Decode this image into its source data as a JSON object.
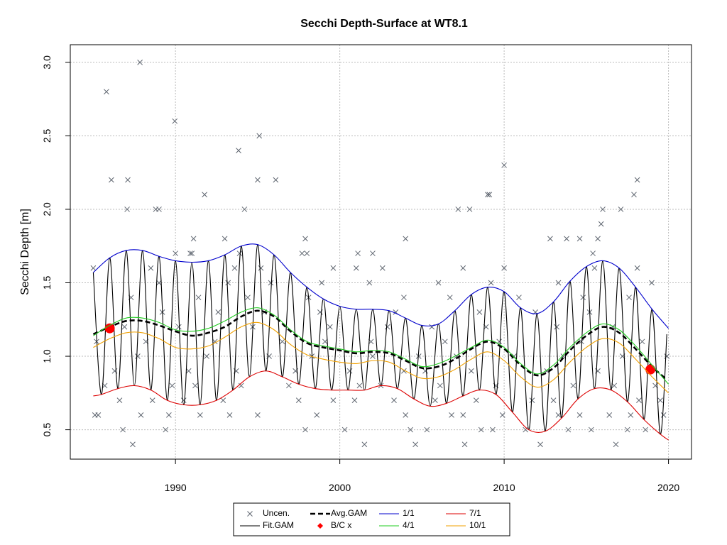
{
  "chart_data": {
    "type": "line",
    "title": "Secchi Depth-Surface at WT8.1",
    "y_label": "Secchi Depth [m]",
    "xlim": [
      1983.6,
      2021.4
    ],
    "ylim": [
      0.3,
      3.12
    ],
    "xticks": [
      1990,
      2000,
      2010,
      2020
    ],
    "yticks": [
      0.5,
      {
        "value": 1,
        "label": "1.0"
      },
      1.5,
      {
        "value": 2,
        "label": "2.0"
      },
      2.5,
      {
        "value": 3,
        "label": "3.0"
      }
    ],
    "grid": true,
    "legend": "bottom",
    "series": [
      {
        "name": "Uncen.",
        "type": "scatter",
        "marker": "x",
        "color": "#5f6670",
        "x": [
          1985.8,
          1987.84,
          1989.96,
          1993.84,
          1995.1,
          1995.0,
          1996.1,
          1986.1,
          1987.1,
          1994.2,
          1987.06,
          1988.8,
          1989.0,
          1991.77,
          2010.0,
          2009.0,
          2009.1,
          2007.2,
          2007.9,
          2016.0,
          2017.1,
          2018.1,
          2017.9,
          2015.9,
          1987.4,
          2001.5,
          2004.6,
          2007.6,
          2012.2,
          2016.8,
          1986.8,
          1989.4,
          1997.9,
          2000.3,
          2004.3,
          2005.3,
          2008.6,
          2009.3,
          2011.3,
          2013.9,
          2015.3,
          2017.5,
          2018.6,
          1985.1,
          1985.3,
          1987.9,
          1989.6,
          1991.5,
          1993.3,
          1995.0,
          1998.6,
          2004.0,
          2006.8,
          2007.5,
          2009.9,
          2013.3,
          2014.6,
          2016.4,
          2017.7,
          2019.7,
          1986.6,
          1988.6,
          1990.5,
          1992.9,
          1997.5,
          1999.6,
          2000.9,
          2003.3,
          2005.8,
          2008.3,
          2011.7,
          2013.0,
          2018.2,
          2019.5,
          1985.7,
          1989.8,
          1991.2,
          1994.0,
          1996.9,
          2001.2,
          2002.5,
          2006.1,
          2009.5,
          2014.2,
          2016.7,
          2019.2,
          1986.3,
          1990.8,
          1993.7,
          1997.3,
          2000.6,
          2003.9,
          2005.2,
          2008.0,
          2012.6,
          2015.7,
          2018.8,
          1987.7,
          1991.9,
          1995.7,
          1998.3,
          2002.0,
          2004.8,
          2007.1,
          2010.6,
          2013.6,
          2017.2,
          2019.9,
          1985.2,
          1988.2,
          1992.4,
          1996.5,
          1999.1,
          2001.9,
          2006.4,
          2009.7,
          2014.7,
          2018.4,
          1986.9,
          1990.2,
          1994.7,
          1999.4,
          2002.9,
          2005.6,
          2008.9,
          2013.2,
          2016.6,
          1989.2,
          1992.6,
          1995.4,
          1998.8,
          2003.4,
          2008.5,
          2011.9,
          2015.2,
          1987.3,
          1991.4,
          1994.4,
          1998.1,
          2003.9,
          2006.7,
          2010.9,
          2014.8,
          2017.6,
          1989.0,
          1993.2,
          1995.8,
          1998.9,
          2001.8,
          2006.0,
          2009.2,
          2013.3,
          2018.98,
          1985.0,
          1988.5,
          1993.6,
          1995.2,
          1999.6,
          2001.0,
          2002.6,
          2007.5,
          2010.0,
          2015.5,
          2018.1,
          1990.0,
          1990.9,
          1991.0,
          1993.9,
          1997.7,
          1998.0,
          2001.1,
          2002.0,
          2015.4,
          1991.1,
          1993.0,
          1997.9,
          2004.0,
          2012.8,
          2013.8,
          2014.6,
          2015.7
        ],
        "values": [
          2.8,
          3.0,
          2.6,
          2.4,
          2.5,
          2.2,
          2.2,
          2.2,
          2.2,
          2.0,
          2.0,
          2.0,
          2.0,
          2.1,
          2.3,
          2.1,
          2.1,
          2.0,
          2.0,
          2.0,
          2.0,
          2.2,
          2.1,
          1.9,
          0.4,
          0.4,
          0.4,
          0.4,
          0.4,
          0.4,
          0.5,
          0.5,
          0.5,
          0.5,
          0.5,
          0.5,
          0.5,
          0.5,
          0.5,
          0.5,
          0.5,
          0.5,
          0.5,
          0.6,
          0.6,
          0.6,
          0.6,
          0.6,
          0.6,
          0.6,
          0.6,
          0.6,
          0.6,
          0.6,
          0.6,
          0.6,
          0.6,
          0.6,
          0.6,
          0.6,
          0.7,
          0.7,
          0.7,
          0.7,
          0.7,
          0.7,
          0.7,
          0.7,
          0.7,
          0.7,
          0.7,
          0.7,
          0.7,
          0.7,
          0.8,
          0.8,
          0.8,
          0.8,
          0.8,
          0.8,
          0.8,
          0.8,
          0.8,
          0.8,
          0.8,
          0.8,
          0.9,
          0.9,
          0.9,
          0.9,
          0.9,
          0.9,
          0.9,
          0.9,
          0.9,
          0.9,
          0.9,
          1.0,
          1.0,
          1.0,
          1.0,
          1.0,
          1.0,
          1.0,
          1.0,
          1.0,
          1.0,
          1.0,
          1.1,
          1.1,
          1.1,
          1.1,
          1.1,
          1.1,
          1.1,
          1.1,
          1.1,
          1.1,
          1.2,
          1.2,
          1.2,
          1.2,
          1.2,
          1.2,
          1.2,
          1.2,
          1.2,
          1.3,
          1.3,
          1.3,
          1.3,
          1.3,
          1.3,
          1.3,
          1.3,
          1.4,
          1.4,
          1.4,
          1.4,
          1.4,
          1.4,
          1.4,
          1.4,
          1.4,
          1.5,
          1.5,
          1.5,
          1.5,
          1.5,
          1.5,
          1.5,
          1.5,
          1.5,
          1.6,
          1.6,
          1.6,
          1.6,
          1.6,
          1.6,
          1.6,
          1.6,
          1.6,
          1.6,
          1.6,
          1.7,
          1.7,
          1.7,
          1.7,
          1.7,
          1.7,
          1.7,
          1.7,
          1.7,
          1.8,
          1.8,
          1.8,
          1.8,
          1.8,
          1.8,
          1.8,
          1.8
        ]
      },
      {
        "name": "Fit.GAM",
        "type": "line",
        "color": "#000000",
        "x": [
          1985,
          1985.5,
          1986,
          1986.5,
          1987,
          1987.5,
          1988,
          1988.5,
          1989,
          1989.5,
          1990,
          1990.5,
          1991,
          1991.5,
          1992,
          1992.5,
          1993,
          1993.5,
          1994,
          1994.5,
          1995,
          1995.5,
          1996,
          1996.5,
          1997,
          1997.5,
          1998,
          1998.5,
          1999,
          1999.5,
          2000,
          2000.5,
          2001,
          2001.5,
          2002,
          2002.5,
          2003,
          2003.5,
          2004,
          2004.5,
          2005,
          2005.5,
          2006,
          2006.5,
          2007,
          2007.5,
          2008,
          2008.5,
          2009,
          2009.5,
          2010,
          2010.5,
          2011,
          2011.5,
          2012,
          2012.5,
          2013,
          2013.5,
          2014,
          2014.5,
          2015,
          2015.5,
          2016,
          2016.5,
          2017,
          2017.5,
          2018,
          2018.5,
          2019,
          2019.5,
          2019.9
        ],
        "values": [
          1.57,
          0.74,
          1.67,
          0.78,
          1.72,
          0.8,
          1.72,
          0.77,
          1.68,
          0.7,
          1.65,
          0.67,
          1.64,
          0.67,
          1.65,
          0.7,
          1.69,
          0.77,
          1.75,
          0.86,
          1.76,
          0.9,
          1.69,
          0.86,
          1.57,
          0.81,
          1.47,
          0.78,
          1.39,
          0.77,
          1.34,
          0.77,
          1.32,
          0.77,
          1.32,
          0.8,
          1.31,
          0.78,
          1.26,
          0.71,
          1.21,
          0.66,
          1.22,
          0.68,
          1.31,
          0.73,
          1.42,
          0.77,
          1.47,
          0.74,
          1.44,
          0.62,
          1.33,
          0.5,
          1.29,
          0.49,
          1.37,
          0.58,
          1.51,
          0.71,
          1.61,
          0.78,
          1.65,
          0.77,
          1.6,
          0.69,
          1.47,
          0.57,
          1.32,
          0.47,
          1.15
        ]
      },
      {
        "name": "Avg.GAM",
        "type": "line",
        "dash": true,
        "color": "#000000",
        "x": [
          1985,
          1986,
          1987,
          1988,
          1989,
          1990,
          1991,
          1992,
          1993,
          1994,
          1995,
          1996,
          1997,
          1998,
          1999,
          2000,
          2001,
          2002,
          2003,
          2004,
          2005,
          2006,
          2007,
          2008,
          2009,
          2010,
          2011,
          2012,
          2013,
          2014,
          2015,
          2016,
          2017,
          2018,
          2019,
          2019.9
        ],
        "values": [
          1.15,
          1.2,
          1.24,
          1.24,
          1.21,
          1.17,
          1.14,
          1.16,
          1.2,
          1.27,
          1.31,
          1.27,
          1.17,
          1.09,
          1.06,
          1.04,
          1.02,
          1.03,
          1.02,
          0.97,
          0.92,
          0.93,
          0.98,
          1.05,
          1.1,
          1.05,
          0.94,
          0.87,
          0.92,
          1.04,
          1.14,
          1.2,
          1.16,
          1.05,
          0.93,
          0.84
        ]
      },
      {
        "name": "B/C x",
        "type": "scatter",
        "marker": "circle",
        "color": "#ff0000",
        "x": [
          1986.0,
          2018.9
        ],
        "values": [
          1.19,
          0.91
        ]
      },
      {
        "name": "1/1",
        "type": "line",
        "color": "#0000cd",
        "x": [
          1985,
          1986,
          1987,
          1988,
          1989,
          1990,
          1991,
          1992,
          1993,
          1994,
          1995,
          1996,
          1997,
          1998,
          1999,
          2000,
          2001,
          2002,
          2003,
          2004,
          2005,
          2006,
          2007,
          2008,
          2009,
          2010,
          2011,
          2012,
          2013,
          2014,
          2015,
          2016,
          2017,
          2018,
          2019,
          2020
        ],
        "values": [
          1.57,
          1.67,
          1.72,
          1.72,
          1.68,
          1.65,
          1.64,
          1.65,
          1.69,
          1.75,
          1.76,
          1.69,
          1.57,
          1.47,
          1.39,
          1.34,
          1.32,
          1.32,
          1.31,
          1.26,
          1.21,
          1.22,
          1.31,
          1.42,
          1.47,
          1.44,
          1.33,
          1.29,
          1.37,
          1.51,
          1.61,
          1.65,
          1.6,
          1.47,
          1.32,
          1.19
        ]
      },
      {
        "name": "4/1",
        "type": "line",
        "color": "#22cc22",
        "x": [
          1985,
          1986,
          1987,
          1988,
          1989,
          1990,
          1991,
          1992,
          1993,
          1994,
          1995,
          1996,
          1997,
          1998,
          1999,
          2000,
          2001,
          2002,
          2003,
          2004,
          2005,
          2006,
          2007,
          2008,
          2009,
          2010,
          2011,
          2012,
          2013,
          2014,
          2015,
          2016,
          2017,
          2018,
          2019,
          2020
        ],
        "values": [
          1.14,
          1.21,
          1.26,
          1.26,
          1.23,
          1.18,
          1.17,
          1.19,
          1.24,
          1.3,
          1.33,
          1.28,
          1.18,
          1.1,
          1.07,
          1.05,
          1.03,
          1.04,
          1.03,
          0.98,
          0.93,
          0.95,
          1.0,
          1.06,
          1.11,
          1.06,
          0.95,
          0.88,
          0.94,
          1.06,
          1.16,
          1.22,
          1.18,
          1.07,
          0.94,
          0.81
        ]
      },
      {
        "name": "7/1",
        "type": "line",
        "color": "#dd0000",
        "x": [
          1985,
          1985.5,
          1986.5,
          1987.5,
          1988.5,
          1989.5,
          1990.5,
          1991.5,
          1992.5,
          1993.5,
          1994.5,
          1995.5,
          1996.5,
          1997.5,
          1998.5,
          1999.5,
          2000.5,
          2001.5,
          2002.5,
          2003.5,
          2004.5,
          2005.5,
          2006.5,
          2007.5,
          2008.5,
          2009.5,
          2010.5,
          2011.5,
          2012.5,
          2013.5,
          2014.5,
          2015.5,
          2016.5,
          2017.5,
          2018.5,
          2019.5,
          2020
        ],
        "values": [
          0.73,
          0.74,
          0.78,
          0.8,
          0.77,
          0.7,
          0.67,
          0.67,
          0.7,
          0.77,
          0.86,
          0.9,
          0.86,
          0.81,
          0.78,
          0.77,
          0.77,
          0.77,
          0.8,
          0.78,
          0.71,
          0.66,
          0.68,
          0.73,
          0.77,
          0.74,
          0.62,
          0.5,
          0.49,
          0.58,
          0.71,
          0.78,
          0.77,
          0.69,
          0.57,
          0.47,
          0.43
        ]
      },
      {
        "name": "10/1",
        "type": "line",
        "color": "#f0a000",
        "x": [
          1985,
          1986,
          1987,
          1988,
          1989,
          1990,
          1991,
          1992,
          1993,
          1994,
          1995,
          1996,
          1997,
          1998,
          1999,
          2000,
          2001,
          2002,
          2003,
          2004,
          2005,
          2006,
          2007,
          2008,
          2009,
          2010,
          2011,
          2012,
          2013,
          2014,
          2015,
          2016,
          2017,
          2018,
          2019,
          2020
        ],
        "values": [
          1.06,
          1.12,
          1.16,
          1.16,
          1.12,
          1.06,
          1.05,
          1.07,
          1.13,
          1.2,
          1.23,
          1.18,
          1.08,
          1.01,
          0.98,
          0.96,
          0.95,
          0.97,
          0.96,
          0.9,
          0.85,
          0.86,
          0.91,
          0.98,
          1.03,
          0.97,
          0.86,
          0.79,
          0.84,
          0.96,
          1.06,
          1.12,
          1.09,
          0.98,
          0.86,
          0.75
        ]
      }
    ]
  }
}
